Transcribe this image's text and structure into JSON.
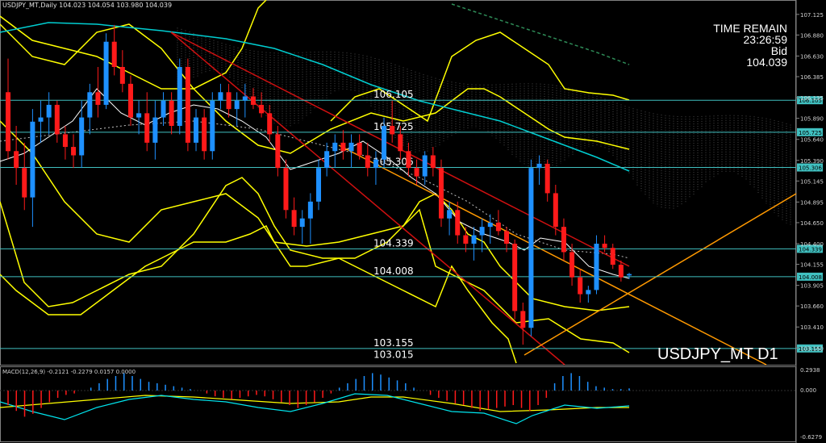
{
  "header": {
    "symbol_info": "USDJPY_MT,Daily  104.023 104.054 103.980 104.039"
  },
  "info_panel": {
    "time_remain_label": "TIME REMAIN",
    "time_remain_value": "23:26:59",
    "bid_label": "Bid",
    "bid_value": "104.039"
  },
  "watermark": "USDJPY_MT D1",
  "macd": {
    "label": "MACD(12,26,9) -0.2121 -0.2279 0.0157 0.0000",
    "axis": [
      "0.2938",
      "0.000",
      "-0.6279"
    ]
  },
  "colors": {
    "background": "#000000",
    "bull": "#1e90ff",
    "bear": "#ff1a1a",
    "bollinger": "#ffff00",
    "ma_long": "#00ced1",
    "level_line": "#40c0c0",
    "trend_red": "#d01010",
    "trend_orange": "#ff9900",
    "cloud": "#7a7a7a"
  },
  "chart_data": {
    "type": "candlestick",
    "symbol": "USDJPY_MT",
    "timeframe": "Daily",
    "ohlc_last": {
      "open": 104.023,
      "high": 104.054,
      "low": 103.98,
      "close": 104.039
    },
    "y_ticks": [
      "107.125",
      "106.880",
      "106.630",
      "106.385",
      "106.135",
      "105.890",
      "105.640",
      "105.390",
      "105.145",
      "104.895",
      "104.650",
      "104.400",
      "104.155",
      "103.905",
      "103.660",
      "103.410",
      "103.160"
    ],
    "levels": [
      {
        "value": 106.105,
        "label": "106.105",
        "tag": "106.105"
      },
      {
        "value": 105.725,
        "label": "105.725",
        "tag": "105.725"
      },
      {
        "value": 105.306,
        "label": "105.306",
        "tag": "105.306"
      },
      {
        "value": 104.339,
        "label": "104.339",
        "tag": "104.339"
      },
      {
        "value": 104.008,
        "label": "104.008",
        "tag": "104.008"
      },
      {
        "value": 103.155,
        "label": "103.155",
        "tag": "103.155"
      },
      {
        "value": 103.015,
        "label": "103.015",
        "tag": ""
      }
    ],
    "ylim": [
      103.0,
      107.2
    ],
    "candles": [
      [
        106.2,
        106.6,
        105.4,
        105.5
      ],
      [
        105.5,
        105.8,
        105.1,
        105.3
      ],
      [
        105.3,
        105.6,
        104.8,
        104.95
      ],
      [
        104.95,
        106.0,
        104.6,
        105.85
      ],
      [
        105.85,
        106.1,
        105.6,
        105.9
      ],
      [
        105.9,
        106.2,
        105.7,
        106.05
      ],
      [
        106.05,
        106.1,
        105.6,
        105.7
      ],
      [
        105.7,
        105.8,
        105.4,
        105.55
      ],
      [
        105.55,
        105.7,
        105.3,
        105.45
      ],
      [
        105.45,
        106.1,
        105.3,
        105.9
      ],
      [
        105.9,
        106.3,
        105.7,
        106.2
      ],
      [
        106.2,
        106.5,
        105.9,
        106.05
      ],
      [
        106.05,
        106.9,
        106.0,
        106.8
      ],
      [
        106.8,
        107.0,
        106.4,
        106.5
      ],
      [
        106.5,
        106.7,
        106.2,
        106.3
      ],
      [
        106.3,
        106.4,
        105.8,
        105.9
      ],
      [
        105.9,
        106.1,
        105.7,
        105.95
      ],
      [
        105.95,
        106.2,
        105.5,
        105.6
      ],
      [
        105.6,
        106.1,
        105.4,
        105.9
      ],
      [
        105.9,
        106.2,
        105.8,
        106.1
      ],
      [
        106.1,
        106.2,
        105.7,
        105.8
      ],
      [
        105.8,
        106.6,
        105.7,
        106.5
      ],
      [
        106.5,
        106.6,
        105.5,
        105.6
      ],
      [
        105.6,
        106.0,
        105.5,
        105.9
      ],
      [
        105.9,
        106.0,
        105.4,
        105.5
      ],
      [
        105.5,
        106.2,
        105.4,
        106.1
      ],
      [
        106.1,
        106.3,
        106.0,
        106.2
      ],
      [
        106.2,
        106.3,
        105.9,
        106.0
      ],
      [
        106.0,
        106.2,
        105.8,
        106.1
      ],
      [
        106.1,
        106.3,
        105.9,
        106.15
      ],
      [
        106.15,
        106.25,
        106.0,
        106.05
      ],
      [
        106.05,
        106.2,
        105.9,
        105.95
      ],
      [
        105.95,
        106.05,
        105.6,
        105.7
      ],
      [
        105.7,
        105.8,
        105.2,
        105.3
      ],
      [
        105.3,
        105.4,
        104.7,
        104.8
      ],
      [
        104.8,
        104.95,
        104.5,
        104.6
      ],
      [
        104.6,
        104.8,
        104.4,
        104.7
      ],
      [
        104.7,
        105.0,
        104.4,
        104.9
      ],
      [
        104.9,
        105.4,
        104.8,
        105.3
      ],
      [
        105.3,
        105.6,
        105.2,
        105.5
      ],
      [
        105.5,
        105.7,
        105.3,
        105.6
      ],
      [
        105.6,
        105.75,
        105.4,
        105.5
      ],
      [
        105.5,
        105.7,
        105.3,
        105.6
      ],
      [
        105.6,
        105.7,
        105.4,
        105.45
      ],
      [
        105.45,
        105.6,
        105.2,
        105.3
      ],
      [
        105.3,
        105.5,
        105.1,
        105.4
      ],
      [
        105.4,
        105.9,
        105.3,
        105.8
      ],
      [
        105.8,
        106.1,
        105.6,
        105.7
      ],
      [
        105.7,
        105.8,
        105.4,
        105.5
      ],
      [
        105.5,
        105.6,
        105.2,
        105.3
      ],
      [
        105.3,
        105.4,
        105.1,
        105.2
      ],
      [
        105.2,
        105.5,
        105.1,
        105.45
      ],
      [
        105.45,
        105.55,
        105.2,
        105.3
      ],
      [
        105.3,
        105.4,
        104.6,
        104.7
      ],
      [
        104.7,
        104.9,
        104.5,
        104.8
      ],
      [
        104.8,
        104.9,
        104.4,
        104.5
      ],
      [
        104.5,
        104.6,
        104.3,
        104.4
      ],
      [
        104.4,
        104.6,
        104.2,
        104.5
      ],
      [
        104.5,
        104.7,
        104.3,
        104.6
      ],
      [
        104.6,
        104.75,
        104.4,
        104.65
      ],
      [
        104.65,
        104.8,
        104.5,
        104.55
      ],
      [
        104.55,
        104.6,
        104.3,
        104.4
      ],
      [
        104.4,
        104.45,
        103.5,
        103.6
      ],
      [
        103.6,
        103.7,
        103.2,
        103.4
      ],
      [
        103.4,
        105.4,
        103.3,
        105.3
      ],
      [
        105.3,
        105.45,
        105.1,
        105.35
      ],
      [
        105.35,
        105.4,
        104.9,
        105.0
      ],
      [
        105.0,
        105.1,
        104.5,
        104.6
      ],
      [
        104.6,
        104.7,
        104.2,
        104.3
      ],
      [
        104.3,
        104.4,
        103.9,
        104.0
      ],
      [
        104.0,
        104.1,
        103.7,
        103.8
      ],
      [
        103.8,
        103.9,
        103.7,
        103.85
      ],
      [
        103.85,
        104.5,
        103.8,
        104.4
      ],
      [
        104.4,
        104.5,
        104.3,
        104.35
      ],
      [
        104.35,
        104.4,
        104.1,
        104.15
      ],
      [
        104.15,
        104.2,
        103.95,
        104.0
      ],
      [
        104.023,
        104.054,
        103.98,
        104.039
      ]
    ],
    "macd_hist": [
      -0.1,
      -0.14,
      -0.18,
      -0.16,
      -0.12,
      -0.08,
      -0.05,
      -0.03,
      -0.02,
      0.0,
      0.02,
      0.05,
      0.08,
      0.1,
      0.12,
      0.1,
      0.08,
      0.06,
      0.05,
      0.04,
      0.03,
      0.02,
      0.01,
      0.0,
      -0.02,
      -0.04,
      -0.05,
      -0.06,
      -0.05,
      -0.04,
      -0.03,
      -0.04,
      -0.06,
      -0.08,
      -0.1,
      -0.12,
      -0.1,
      -0.08,
      -0.05,
      -0.02,
      0.02,
      0.05,
      0.08,
      0.1,
      0.12,
      0.11,
      0.09,
      0.07,
      0.05,
      0.02,
      0.0,
      -0.03,
      -0.05,
      -0.07,
      -0.09,
      -0.1,
      -0.12,
      -0.14,
      -0.13,
      -0.12,
      -0.11,
      -0.1,
      -0.12,
      -0.14,
      -0.1,
      -0.05,
      0.05,
      0.1,
      0.12,
      0.1,
      0.06,
      0.03,
      0.02,
      0.01,
      0.01,
      0.015
    ]
  }
}
